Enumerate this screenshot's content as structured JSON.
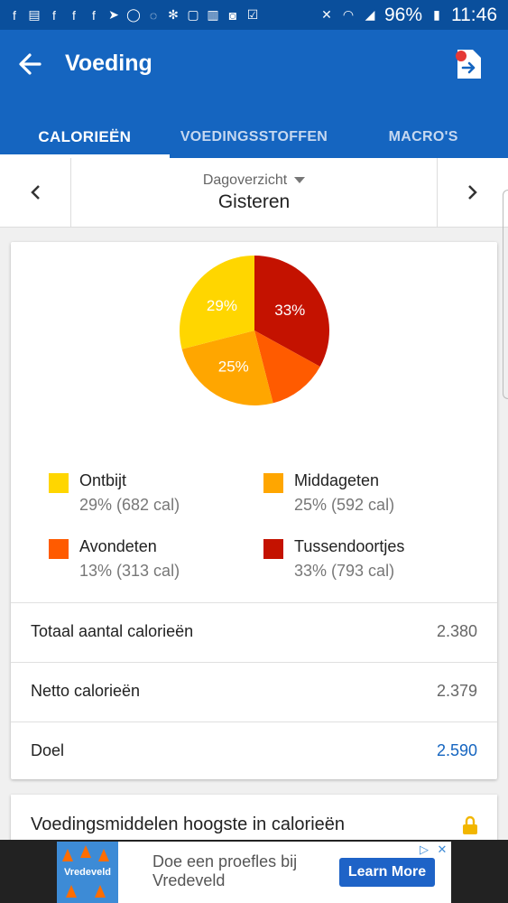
{
  "status_bar": {
    "battery": "96%",
    "time": "11:46"
  },
  "app_bar": {
    "title": "Voeding"
  },
  "tabs": [
    {
      "label": "CALORIEËN",
      "active": true
    },
    {
      "label": "VOEDINGSSTOFFEN",
      "active": false
    },
    {
      "label": "MACRO'S",
      "active": false
    }
  ],
  "day_nav": {
    "label": "Dagoverzicht",
    "value": "Gisteren"
  },
  "chart_data": {
    "type": "pie",
    "slices": [
      {
        "name": "Tussendoortjes",
        "percent": 33,
        "label": "33%",
        "color": "#c41200"
      },
      {
        "name": "Avondeten",
        "percent": 13,
        "label": "",
        "color": "#ff5b00"
      },
      {
        "name": "Middageten",
        "percent": 25,
        "label": "25%",
        "color": "#ffa600"
      },
      {
        "name": "Ontbijt",
        "percent": 29,
        "label": "29%",
        "color": "#ffd600"
      }
    ]
  },
  "legend": [
    {
      "name": "Ontbijt",
      "value": "29% (682 cal)",
      "color": "#ffd600"
    },
    {
      "name": "Middageten",
      "value": "25% (592 cal)",
      "color": "#ffa600"
    },
    {
      "name": "Avondeten",
      "value": "13% (313 cal)",
      "color": "#ff5b00"
    },
    {
      "name": "Tussendoortjes",
      "value": "33% (793 cal)",
      "color": "#c41200"
    }
  ],
  "summary": [
    {
      "label": "Totaal aantal calorieën",
      "value": "2.380"
    },
    {
      "label": "Netto calorieën",
      "value": "2.379"
    },
    {
      "label": "Doel",
      "value": "2.590"
    }
  ],
  "top_foods": {
    "title": "Voedingsmiddelen hoogste in calorieën"
  },
  "ad": {
    "brand": "Vredeveld",
    "text": "Doe een proefles bij Vredeveld",
    "button": "Learn More"
  }
}
